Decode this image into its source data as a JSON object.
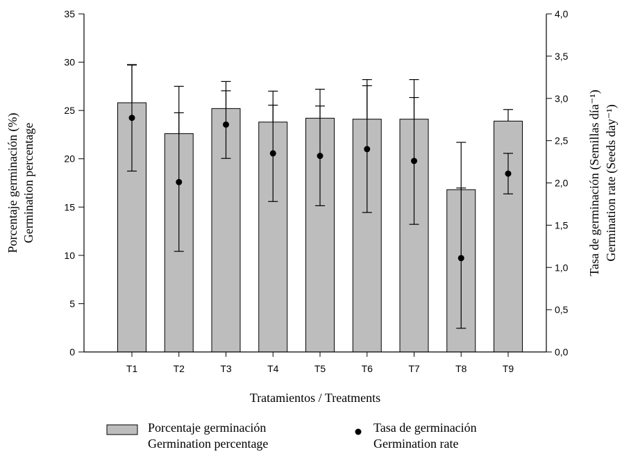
{
  "chart_data": {
    "type": "bar",
    "categories": [
      "T1",
      "T2",
      "T3",
      "T4",
      "T5",
      "T6",
      "T7",
      "T8",
      "T9"
    ],
    "xlabel": "Tratamientos / Treatments",
    "ylabel_lines": [
      "Porcentaje germinación (%)",
      "Germination percentage"
    ],
    "ylabel2_lines": [
      "Tasa de germinación (Semillas día⁻¹)",
      "Germination rate (Seeds day⁻¹)"
    ],
    "ylim": [
      0,
      35
    ],
    "ylim2": [
      0,
      4.0
    ],
    "yticks": [
      "0",
      "5",
      "10",
      "15",
      "20",
      "25",
      "30",
      "35"
    ],
    "yticks2": [
      "0,0",
      "0,5",
      "1,0",
      "1,5",
      "2,0",
      "2,5",
      "3,0",
      "3,5",
      "4,0"
    ],
    "series": [
      {
        "name": "Porcentaje germinación / Germination percentage",
        "kind": "bar",
        "axis": "left",
        "values": [
          25.8,
          22.6,
          25.2,
          23.8,
          24.2,
          24.1,
          24.1,
          16.8,
          23.9
        ],
        "error": [
          3.9,
          4.9,
          2.8,
          3.2,
          3.0,
          4.1,
          4.1,
          4.9,
          1.2
        ],
        "color": "#bdbdbd"
      },
      {
        "name": "Tasa de germinación / Germination rate",
        "kind": "point",
        "axis": "right",
        "values": [
          2.77,
          2.01,
          2.69,
          2.35,
          2.32,
          2.4,
          2.26,
          1.11,
          2.11
        ],
        "error": [
          0.63,
          0.82,
          0.4,
          0.57,
          0.59,
          0.75,
          0.75,
          0.83,
          0.24
        ],
        "color": "#000000"
      }
    ],
    "legend": [
      {
        "lines": [
          "Porcentaje germinación",
          "Germination percentage"
        ]
      },
      {
        "lines": [
          "Tasa de germinación",
          "Germination rate"
        ]
      }
    ],
    "legend_position": "bottom",
    "grid": false
  }
}
